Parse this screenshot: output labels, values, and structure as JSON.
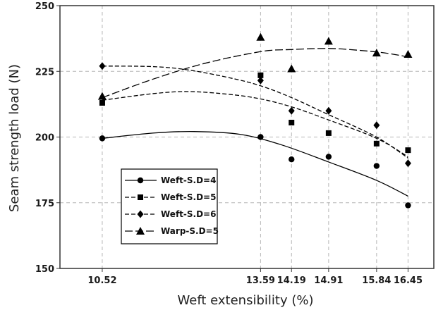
{
  "chart_data": {
    "type": "scatter",
    "xlabel": "Weft extensibility (%)",
    "ylabel": "Seam strength load (N)",
    "x_ticks": [
      10.52,
      13.59,
      14.19,
      14.91,
      15.84,
      16.45
    ],
    "x_tick_labels": [
      "10.52",
      "13.59",
      "14.19",
      "14.91",
      "15.84",
      "16.45"
    ],
    "y_ticks": [
      150,
      175,
      200,
      225,
      250
    ],
    "y_tick_labels": [
      "150",
      "175",
      "200",
      "225",
      "250"
    ],
    "ylim": [
      150,
      250
    ],
    "xlim": [
      9.7,
      16.95
    ],
    "grid": true,
    "legend_position": "lower-left",
    "series": [
      {
        "name": "Weft-S.D=4",
        "marker": "circle",
        "line_style": "solid",
        "x": [
          10.52,
          13.59,
          14.19,
          14.91,
          15.84,
          16.45
        ],
        "y": [
          199.5,
          200,
          191.5,
          192.5,
          189,
          174
        ],
        "trend": [
          [
            10.52,
            199.5
          ],
          [
            11.5,
            201.5
          ],
          [
            12.3,
            202.1
          ],
          [
            13.2,
            201
          ],
          [
            14.0,
            197
          ],
          [
            14.91,
            190.5
          ],
          [
            15.84,
            183.5
          ],
          [
            16.45,
            177.5
          ]
        ]
      },
      {
        "name": "Weft-S.D=5",
        "marker": "square",
        "line_style": "dashed",
        "x": [
          10.52,
          13.59,
          14.19,
          14.91,
          15.84,
          16.45
        ],
        "y": [
          213,
          223.5,
          205.5,
          201.5,
          197.5,
          195
        ],
        "trend": [
          [
            10.52,
            214
          ],
          [
            11.5,
            216.5
          ],
          [
            12.2,
            217.3
          ],
          [
            13.0,
            216.2
          ],
          [
            13.59,
            214.5
          ],
          [
            14.19,
            211.5
          ],
          [
            14.91,
            206.5
          ],
          [
            15.84,
            199.5
          ],
          [
            16.45,
            192.5
          ]
        ]
      },
      {
        "name": "Weft-S.D=6",
        "marker": "diamond",
        "line_style": "dashed",
        "x": [
          10.52,
          13.59,
          14.19,
          14.91,
          15.84,
          16.45
        ],
        "y": [
          227,
          221.5,
          210,
          210,
          204.5,
          190
        ],
        "trend": [
          [
            10.52,
            227
          ],
          [
            11.5,
            226.8
          ],
          [
            12.2,
            225.5
          ],
          [
            13.0,
            222.5
          ],
          [
            13.59,
            219.5
          ],
          [
            14.19,
            215
          ],
          [
            14.91,
            208.5
          ],
          [
            15.84,
            200
          ],
          [
            16.45,
            192
          ]
        ]
      },
      {
        "name": "Warp-S.D=5",
        "marker": "triangle",
        "line_style": "long-dashed",
        "x": [
          10.52,
          13.59,
          14.19,
          14.91,
          15.84,
          16.45
        ],
        "y": [
          215.5,
          238,
          226,
          236.5,
          232,
          231.5
        ],
        "trend": [
          [
            10.52,
            215
          ],
          [
            11.5,
            222
          ],
          [
            12.5,
            228
          ],
          [
            13.59,
            232.5
          ],
          [
            14.19,
            233.3
          ],
          [
            14.91,
            233.7
          ],
          [
            15.5,
            233
          ],
          [
            16.0,
            232
          ],
          [
            16.45,
            230.5
          ]
        ]
      }
    ]
  }
}
